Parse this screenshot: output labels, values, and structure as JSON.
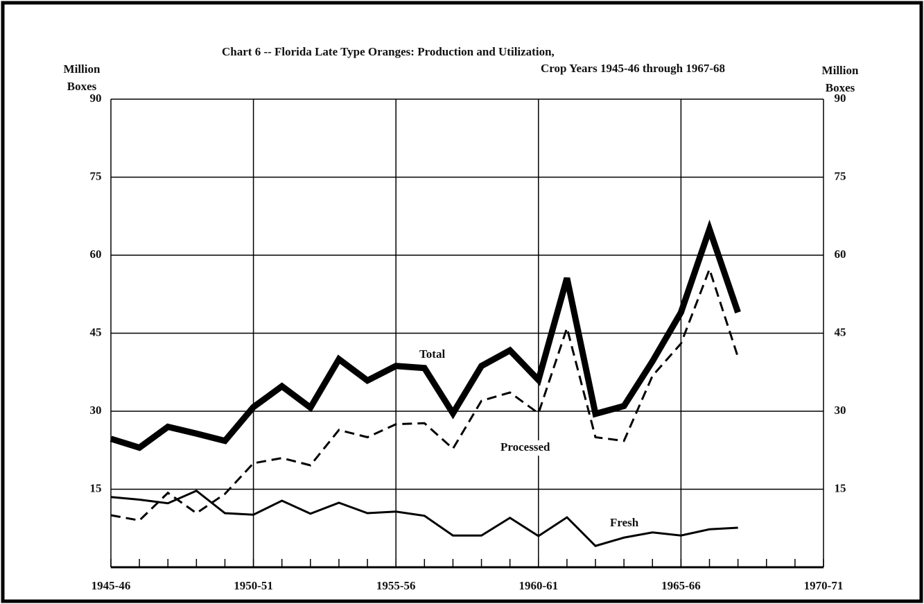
{
  "chart_data": {
    "type": "line",
    "title": "Chart 6 -- Florida Late Type Oranges:  Production and Utilization,",
    "subtitle": "Crop Years 1945-46 through 1967-68",
    "y_label": [
      "Million",
      "Boxes"
    ],
    "y2_label": [
      "Million",
      "Boxes"
    ],
    "x": [
      1945,
      1946,
      1947,
      1948,
      1949,
      1950,
      1951,
      1952,
      1953,
      1954,
      1955,
      1956,
      1957,
      1958,
      1959,
      1960,
      1961,
      1962,
      1963,
      1964,
      1965,
      1966,
      1967
    ],
    "xlim": [
      1945,
      1970
    ],
    "xticks": [
      {
        "value": 1945,
        "label": "1945-46"
      },
      {
        "value": 1950,
        "label": "1950-51"
      },
      {
        "value": 1955,
        "label": "1955-56"
      },
      {
        "value": 1960,
        "label": "1960-61"
      },
      {
        "value": 1965,
        "label": "1965-66"
      },
      {
        "value": 1970,
        "label": "1970-71"
      }
    ],
    "ylim": [
      0,
      90
    ],
    "yticks": [
      15,
      30,
      45,
      60,
      75,
      90
    ],
    "y2lim": [
      0,
      90
    ],
    "y2ticks": [
      15,
      30,
      45,
      60,
      75,
      90
    ],
    "grid": true,
    "series": [
      {
        "name": "Total",
        "color": "#000000",
        "style": "thick",
        "values": [
          24.7,
          23,
          27,
          25.7,
          24.3,
          30.8,
          34.8,
          30.7,
          40,
          35.9,
          38.7,
          38.3,
          29.6,
          38.7,
          41.7,
          36,
          55.6,
          29.5,
          31,
          39.6,
          49,
          65,
          49
        ]
      },
      {
        "name": "Processed",
        "color": "#000000",
        "style": "dashed",
        "values": [
          10,
          9,
          14.3,
          10.4,
          14.1,
          20,
          21,
          19.6,
          26.4,
          25,
          27.5,
          27.7,
          22.8,
          32,
          33.6,
          29.6,
          46,
          25,
          24.3,
          36.8,
          43,
          57.3,
          40.4
        ]
      },
      {
        "name": "Fresh",
        "color": "#000000",
        "style": "solid",
        "values": [
          13.5,
          13,
          12.3,
          14.7,
          10.4,
          10.1,
          12.8,
          10.3,
          12.4,
          10.4,
          10.7,
          9.9,
          6.1,
          6.1,
          9.5,
          6,
          9.6,
          4.1,
          5.7,
          6.7,
          6.1,
          7.3,
          7.6
        ]
      }
    ]
  }
}
